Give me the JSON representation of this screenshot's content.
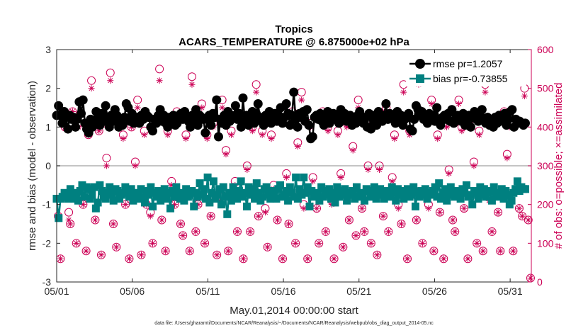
{
  "chart_data": {
    "type": "line",
    "title": "Tropics",
    "subtitle": "ACARS_TEMPERATURE @ 6.875000e+02 hPa",
    "xlabel": "May.01,2014 00:00:00 start",
    "ylabel_left": "rmse and bias (model - observation)",
    "ylabel_right": "# of obs: o=possible; ×=assimilated",
    "footer": "data file: /Users/gharamti/Documents/NCAR/Reanalysis/~/Documents/NCAR/Reanalysis/webpub/obs_diag_output_2014-05.nc",
    "x_ticks": [
      "05/01",
      "05/06",
      "05/11",
      "05/16",
      "05/21",
      "05/26",
      "05/31"
    ],
    "y_left_ticks": [
      "-3",
      "-2",
      "-1",
      "0",
      "1",
      "2",
      "3"
    ],
    "y_right_ticks": [
      "0",
      "100",
      "200",
      "300",
      "400",
      "500",
      "600"
    ],
    "ylim_left": [
      -3,
      3
    ],
    "ylim_right": [
      0,
      600
    ],
    "xlim_days": [
      0,
      31.4
    ],
    "legend": {
      "rmse": "rmse pr=1.2057",
      "bias": "bias pr=-0.73855"
    },
    "colors": {
      "rmse": "#000000",
      "bias": "#008080",
      "obs": "#cc0055",
      "zero_line": "#b0b0b0",
      "axis": "#262626"
    },
    "rmse": [
      1.3,
      1.55,
      1.3,
      1.1,
      1.4,
      1.25,
      0.95,
      1.3,
      1.2,
      1.25,
      1.0,
      1.2,
      1.65,
      1.35,
      1.7,
      1.1,
      0.95,
      0.85,
      1.2,
      1.0,
      1.15,
      1.4,
      1.25,
      1.05,
      1.35,
      1.15,
      1.55,
      1.25,
      1.0,
      1.3,
      1.15,
      1.45,
      1.3,
      1.0,
      1.2,
      1.05,
      1.25,
      1.6,
      1.5,
      1.15,
      1.35,
      1.1,
      1.2,
      1.25,
      1.1,
      1.3,
      1.2,
      1.4,
      1.3,
      1.25,
      1.0,
      0.9,
      1.2,
      1.1,
      1.3,
      1.45,
      1.15,
      1.3,
      1.1,
      1.0,
      1.25,
      1.2,
      1.3,
      1.05,
      1.1,
      1.3,
      1.35,
      1.2,
      1.4,
      1.25,
      1.15,
      1.0,
      1.3,
      1.2,
      1.45,
      1.05,
      1.3,
      1.25,
      1.2,
      0.85,
      1.2,
      1.3,
      1.05,
      1.35,
      1.25,
      1.7,
      0.75,
      1.2,
      1.1,
      1.3,
      1.05,
      1.4,
      1.15,
      1.3,
      1.25,
      1.55,
      1.2,
      1.35,
      1.0,
      1.75,
      1.15,
      1.3,
      1.05,
      1.2,
      1.4,
      1.1,
      1.35,
      1.6,
      1.25,
      1.15,
      1.05,
      1.3,
      1.2,
      1.4,
      1.1,
      1.25,
      1.35,
      1.15,
      1.3,
      1.5,
      1.1,
      1.25,
      1.6,
      1.35,
      1.05,
      1.3,
      1.9,
      1.2,
      1.0,
      1.35,
      1.25,
      1.4,
      1.15,
      1.45,
      1.05,
      0.7,
      0.75,
      1.25,
      1.3,
      1.2,
      1.35,
      1.15,
      1.05,
      1.3,
      1.4,
      1.1,
      1.25,
      1.35,
      1.2,
      1.3,
      1.1,
      1.45,
      1.2,
      1.35,
      1.15,
      1.25,
      1.3,
      1.05,
      1.2,
      1.1,
      1.3,
      1.4,
      1.2,
      1.1,
      1.25,
      1.0,
      1.35,
      0.95,
      1.3,
      1.2,
      1.05,
      1.4,
      1.25,
      1.15,
      1.3,
      1.6,
      1.2,
      1.35,
      1.25,
      1.3,
      1.1,
      1.4,
      1.2,
      1.3,
      1.05,
      1.2,
      1.25,
      1.35,
      0.95,
      0.9,
      1.2,
      1.55,
      1.45,
      1.3,
      1.4,
      1.2,
      1.25,
      1.1,
      1.35,
      1.25,
      1.3,
      1.15,
      1.5,
      1.2,
      1.05,
      1.25,
      1.3,
      1.2,
      1.35,
      1.15,
      1.45,
      1.1,
      1.2,
      1.3,
      1.25,
      1.15,
      1.35,
      1.05,
      1.2,
      1.3,
      1.0,
      1.25,
      1.4,
      1.2,
      1.15,
      1.3,
      1.45,
      1.2,
      1.1,
      1.25,
      1.05,
      1.2,
      1.0,
      1.25,
      1.1,
      1.3,
      1.2,
      1.15,
      1.35,
      1.05,
      1.2,
      1.4,
      1.45,
      1.0,
      1.2,
      1.1,
      1.15,
      1.1,
      1.05,
      1.1
    ],
    "bias": [
      -0.85,
      -1.35,
      -0.85,
      -0.8,
      -0.7,
      -0.75,
      -0.85,
      -0.6,
      -0.75,
      -0.85,
      -0.7,
      -0.9,
      -0.65,
      -0.5,
      -0.8,
      -0.55,
      -0.6,
      -0.85,
      -0.75,
      -0.55,
      -1.1,
      -0.95,
      -0.5,
      -0.65,
      -0.8,
      -0.85,
      -0.7,
      -0.55,
      -0.75,
      -0.9,
      -0.6,
      -0.65,
      -0.85,
      -0.75,
      -0.7,
      -0.55,
      -0.65,
      -0.8,
      -0.6,
      -0.9,
      -0.75,
      -0.7,
      -0.85,
      -0.6,
      -0.8,
      -0.95,
      -0.65,
      -0.75,
      -0.55,
      -1.05,
      -0.7,
      -0.8,
      -0.65,
      -0.9,
      -0.75,
      -0.6,
      -0.85,
      -0.7,
      -1.1,
      -0.65,
      -0.8,
      -0.55,
      -0.75,
      -0.85,
      -0.7,
      -0.9,
      -0.6,
      -0.8,
      -0.75,
      -0.65,
      -1.05,
      -0.7,
      -0.8,
      -0.45,
      -0.75,
      -0.6,
      -0.85,
      -0.3,
      -0.95,
      -0.7,
      -0.4,
      -0.85,
      -0.75,
      -0.6,
      -1.0,
      -0.55,
      -0.8,
      -1.25,
      -0.7,
      -0.9,
      -0.55,
      -0.75,
      -0.85,
      -0.65,
      -0.4,
      -0.8,
      -0.7,
      -1.05,
      -0.55,
      -0.75,
      -0.6,
      -0.85,
      -0.45,
      -0.7,
      -0.9,
      -0.8,
      -0.6,
      -0.55,
      -0.75,
      -0.85,
      -0.65,
      -0.7,
      -0.85,
      -0.6,
      -0.5,
      -0.8,
      -0.75,
      -0.65,
      -0.9,
      -0.55,
      -0.7,
      -0.8,
      -0.3,
      -0.85,
      -0.6,
      -0.75,
      -0.3,
      -0.7,
      -0.55,
      -1.05,
      -0.65,
      -0.8,
      -0.75,
      -0.7,
      -0.9,
      -0.55,
      -0.8,
      -0.65,
      -0.75,
      -0.6,
      -0.85,
      -0.7,
      -0.95,
      -0.55,
      -0.8,
      -0.65,
      -0.75,
      -0.6,
      -0.9,
      -0.7,
      -0.75,
      -0.65,
      -0.85,
      -0.55,
      -0.8,
      -0.7,
      -0.75,
      -0.9,
      -0.6,
      -0.65,
      -0.8,
      -0.7,
      -0.55,
      -0.85,
      -0.75,
      -0.6,
      -0.7,
      -0.85,
      -0.65,
      -0.75,
      -0.8,
      -0.55,
      -0.7,
      -0.9,
      -0.6,
      -0.75,
      -0.65,
      -0.85,
      -0.7,
      -0.6,
      -0.8,
      -0.75,
      -0.55,
      -1.05,
      -0.7,
      -0.8,
      -0.65,
      -0.75,
      -0.6,
      -0.85,
      -0.7,
      -0.75,
      -0.65,
      -0.55,
      -0.8,
      -0.45,
      -0.85,
      -0.7,
      -0.6,
      -0.9,
      -0.75,
      -0.55,
      -0.7,
      -0.8,
      -0.65,
      -0.75,
      -0.85,
      -0.6,
      -0.7,
      -0.5,
      -0.8,
      -0.75,
      -1.0,
      -0.65,
      -0.7,
      -0.85,
      -0.55,
      -0.75,
      -0.6,
      -0.8,
      -0.7,
      -0.65,
      -0.9,
      -0.55,
      -0.75,
      -0.8,
      -0.7,
      -0.6,
      -0.85,
      -0.65,
      -0.75,
      -1.0,
      -0.9,
      -0.7,
      -0.6,
      -0.4,
      -0.65,
      -0.55,
      -0.6,
      -0.6
    ],
    "obs_points_day": [
      0.1,
      0.25,
      0.55,
      0.8,
      0.9,
      1.05,
      1.3,
      1.45,
      1.75,
      1.95,
      2.1,
      2.3,
      2.55,
      2.8,
      2.95,
      3.15,
      3.3,
      3.55,
      3.75,
      3.95,
      4.2,
      4.4,
      4.55,
      4.8,
      4.95,
      5.2,
      5.35,
      5.6,
      5.8,
      5.95,
      6.2,
      6.35,
      6.6,
      6.8,
      6.95,
      7.2,
      7.35,
      7.6,
      7.8,
      7.95,
      8.2,
      8.35,
      8.55,
      8.8,
      8.95,
      9.2,
      9.35,
      9.6,
      9.8,
      9.95,
      10.2,
      10.35,
      10.6,
      10.8,
      10.95,
      11.2,
      11.35,
      11.55,
      11.8,
      11.95,
      12.2,
      12.35,
      12.6,
      12.8,
      12.95,
      13.2,
      13.35,
      13.6,
      13.8,
      13.95,
      14.2,
      14.35,
      14.6,
      14.8,
      14.95,
      15.2,
      15.35,
      15.6,
      15.8,
      15.95,
      16.2,
      16.35,
      16.6,
      16.8,
      16.95,
      17.2,
      17.35,
      17.6,
      17.8,
      17.95,
      18.2,
      18.35,
      18.6,
      18.8,
      18.95,
      19.2,
      19.35,
      19.6,
      19.8,
      19.95,
      20.2,
      20.35,
      20.6,
      20.8,
      20.95,
      21.2,
      21.35,
      21.6,
      21.8,
      21.95,
      22.2,
      22.35,
      22.6,
      22.8,
      22.95,
      23.2,
      23.35,
      23.6,
      23.8,
      23.95,
      24.2,
      24.35,
      24.6,
      24.8,
      24.95,
      25.2,
      25.35,
      25.6,
      25.8,
      25.95,
      26.2,
      26.35,
      26.6,
      26.8,
      26.95,
      27.2,
      27.35,
      27.6,
      27.8,
      27.95,
      28.2,
      28.35,
      28.6,
      28.8,
      28.95,
      29.2,
      29.35,
      29.6,
      29.8,
      29.95,
      30.2,
      30.35,
      30.6,
      30.8,
      30.95,
      31.2,
      31.35
    ],
    "obs_possible": [
      170,
      60,
      400,
      180,
      150,
      440,
      100,
      410,
      200,
      80,
      380,
      520,
      160,
      390,
      70,
      410,
      320,
      540,
      150,
      90,
      420,
      380,
      200,
      60,
      400,
      310,
      470,
      70,
      390,
      200,
      180,
      100,
      420,
      550,
      160,
      80,
      390,
      260,
      200,
      440,
      150,
      120,
      380,
      80,
      530,
      130,
      200,
      460,
      100,
      380,
      170,
      410,
      70,
      220,
      470,
      340,
      80,
      390,
      260,
      130,
      420,
      60,
      300,
      130,
      400,
      510,
      170,
      390,
      190,
      90,
      380,
      250,
      160,
      420,
      60,
      280,
      150,
      440,
      100,
      360,
      490,
      200,
      60,
      410,
      270,
      190,
      100,
      440,
      130,
      400,
      210,
      60,
      390,
      280,
      90,
      410,
      160,
      350,
      120,
      470,
      190,
      130,
      300,
      100,
      410,
      70,
      300,
      170,
      450,
      130,
      270,
      380,
      200,
      150,
      510,
      60,
      390,
      240,
      160,
      530,
      100,
      430,
      200,
      470,
      80,
      380,
      180,
      60,
      410,
      290,
      160,
      130,
      470,
      400,
      190,
      60,
      420,
      310,
      100,
      390,
      80,
      510,
      220,
      130,
      420,
      180,
      80,
      440,
      330,
      410,
      80,
      560,
      190,
      170,
      500,
      160,
      10
    ],
    "obs_assimilated": [
      170,
      60,
      400,
      160,
      150,
      440,
      100,
      400,
      200,
      80,
      380,
      500,
      160,
      390,
      70,
      410,
      300,
      520,
      150,
      90,
      420,
      370,
      200,
      60,
      400,
      300,
      450,
      70,
      380,
      200,
      170,
      100,
      410,
      520,
      160,
      80,
      380,
      250,
      200,
      430,
      150,
      120,
      370,
      80,
      510,
      130,
      200,
      450,
      100,
      370,
      170,
      400,
      70,
      210,
      450,
      330,
      80,
      380,
      250,
      130,
      410,
      60,
      290,
      130,
      390,
      490,
      170,
      380,
      180,
      90,
      370,
      240,
      160,
      410,
      60,
      270,
      150,
      430,
      100,
      350,
      470,
      190,
      60,
      400,
      260,
      190,
      100,
      430,
      130,
      390,
      200,
      60,
      380,
      270,
      90,
      400,
      160,
      340,
      120,
      450,
      190,
      130,
      290,
      100,
      400,
      70,
      290,
      170,
      440,
      130,
      260,
      370,
      190,
      150,
      490,
      60,
      380,
      230,
      160,
      510,
      100,
      420,
      190,
      460,
      80,
      370,
      180,
      60,
      400,
      280,
      160,
      130,
      460,
      390,
      190,
      60,
      410,
      300,
      100,
      380,
      80,
      490,
      210,
      130,
      410,
      180,
      80,
      430,
      320,
      400,
      80,
      540,
      190,
      170,
      480,
      160,
      10
    ]
  }
}
